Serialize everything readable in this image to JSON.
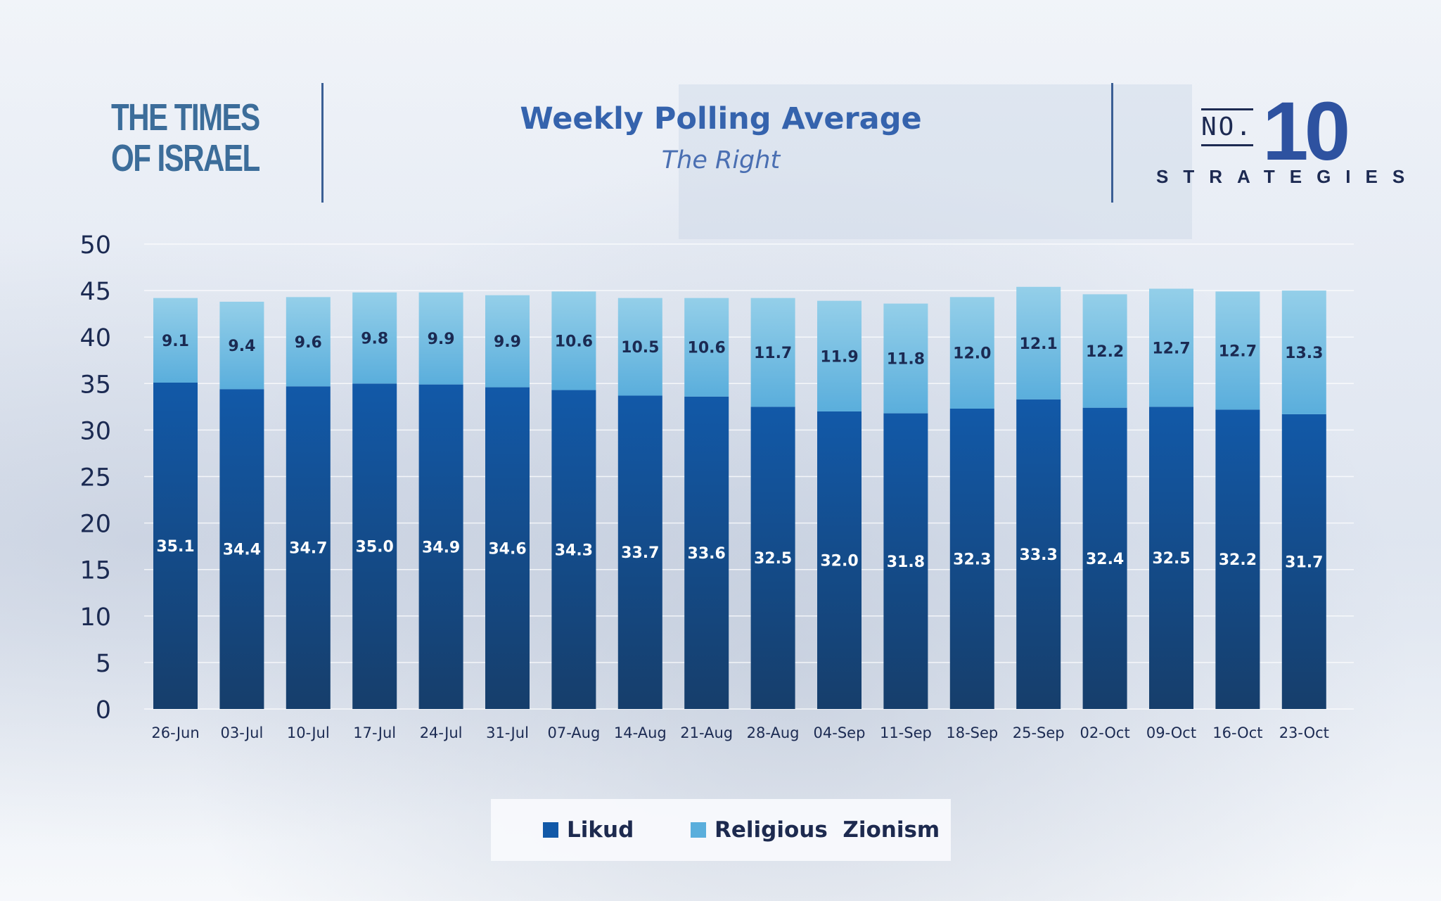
{
  "header": {
    "logo_line1": "THE TIMES",
    "logo_line2": "OF ISRAEL",
    "title": "Weekly Polling Average",
    "subtitle": "The Right",
    "no10_no": "NO.",
    "no10_number": "10",
    "no10_word": "STRATEGIES"
  },
  "colors": {
    "likud_top": "#1259a8",
    "likud_bottom": "#163e6b",
    "rz_top": "#94cfe9",
    "rz_bottom": "#5aaedc",
    "axis_text": "#1b2a52",
    "title": "#3563ad"
  },
  "chart_data": {
    "type": "bar",
    "stacked": true,
    "categories": [
      "26-Jun",
      "03-Jul",
      "10-Jul",
      "17-Jul",
      "24-Jul",
      "31-Jul",
      "07-Aug",
      "14-Aug",
      "21-Aug",
      "28-Aug",
      "04-Sep",
      "11-Sep",
      "18-Sep",
      "25-Sep",
      "02-Oct",
      "09-Oct",
      "16-Oct",
      "23-Oct"
    ],
    "series": [
      {
        "name": "Likud",
        "values": [
          35.1,
          34.4,
          34.7,
          35.0,
          34.9,
          34.6,
          34.3,
          33.7,
          33.6,
          32.5,
          32.0,
          31.8,
          32.3,
          33.3,
          32.4,
          32.5,
          32.2,
          31.7
        ]
      },
      {
        "name": "Religious  Zionism",
        "values": [
          9.1,
          9.4,
          9.6,
          9.8,
          9.9,
          9.9,
          10.6,
          10.5,
          10.6,
          11.7,
          11.9,
          11.8,
          12.0,
          12.1,
          12.2,
          12.7,
          12.7,
          13.3
        ]
      }
    ],
    "title": "Weekly Polling Average",
    "subtitle": "The Right",
    "ylim": [
      0,
      50
    ],
    "yticks": [
      0,
      5,
      10,
      15,
      20,
      25,
      30,
      35,
      40,
      45,
      50
    ],
    "grid": true,
    "legend": "bottom-center"
  },
  "legend": {
    "items": [
      "Likud",
      "Religious  Zionism"
    ]
  }
}
